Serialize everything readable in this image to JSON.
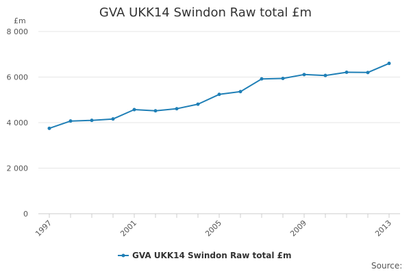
{
  "chart_data": {
    "type": "line",
    "title": "GVA UKK14 Swindon Raw total £m",
    "y_unit": "£m",
    "xlabel": "",
    "ylabel": "",
    "x": [
      1997,
      1998,
      1999,
      2000,
      2001,
      2002,
      2003,
      2004,
      2005,
      2006,
      2007,
      2008,
      2009,
      2010,
      2011,
      2012,
      2013
    ],
    "x_tick_labels": [
      "1997",
      "2001",
      "2005",
      "2009",
      "2013"
    ],
    "y_ticks": [
      0,
      2000,
      4000,
      6000,
      8000
    ],
    "y_tick_labels": [
      "0",
      "2 000",
      "4 000",
      "6 000",
      "8 000"
    ],
    "ylim": [
      0,
      8000
    ],
    "grid": "horizontal",
    "legend_position": "bottom",
    "series": [
      {
        "name": "GVA UKK14 Swindon Raw total £m",
        "color": "#1f7fb6",
        "values": [
          3750,
          4070,
          4100,
          4160,
          4570,
          4520,
          4610,
          4810,
          5240,
          5360,
          5920,
          5940,
          6110,
          6070,
          6210,
          6200,
          6600
        ]
      }
    ],
    "source_label": "Source:"
  }
}
